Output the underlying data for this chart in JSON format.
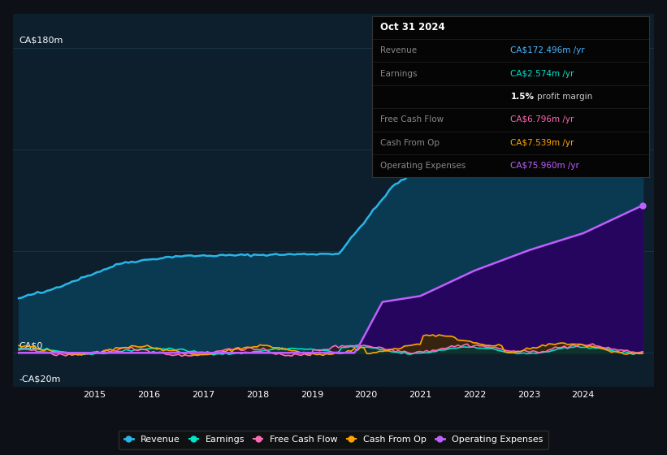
{
  "bg_color": "#0d1117",
  "plot_bg_color": "#0d1f2d",
  "grid_color": "#1e3a4a",
  "y_label_top": "CA$180m",
  "y_label_zero": "CA$0",
  "y_label_neg": "-CA$20m",
  "x_ticks": [
    2015,
    2016,
    2017,
    2018,
    2019,
    2020,
    2021,
    2022,
    2023,
    2024
  ],
  "ylim": [
    -20,
    200
  ],
  "xlim_start": 2013.5,
  "xlim_end": 2025.3,
  "revenue_color": "#29b5e8",
  "revenue_fill_color": "#0a3a52",
  "earnings_color": "#00e5cc",
  "earnings_fill_color": "#003d35",
  "fcf_color": "#ff69b4",
  "fcf_fill_color": "#3a1020",
  "cashfromop_color": "#ffa500",
  "cashfromop_fill_color": "#3a2a00",
  "opex_color": "#bf5fff",
  "opex_fill_color": "#2a0060",
  "legend_bg": "#111111",
  "legend_border": "#333333"
}
